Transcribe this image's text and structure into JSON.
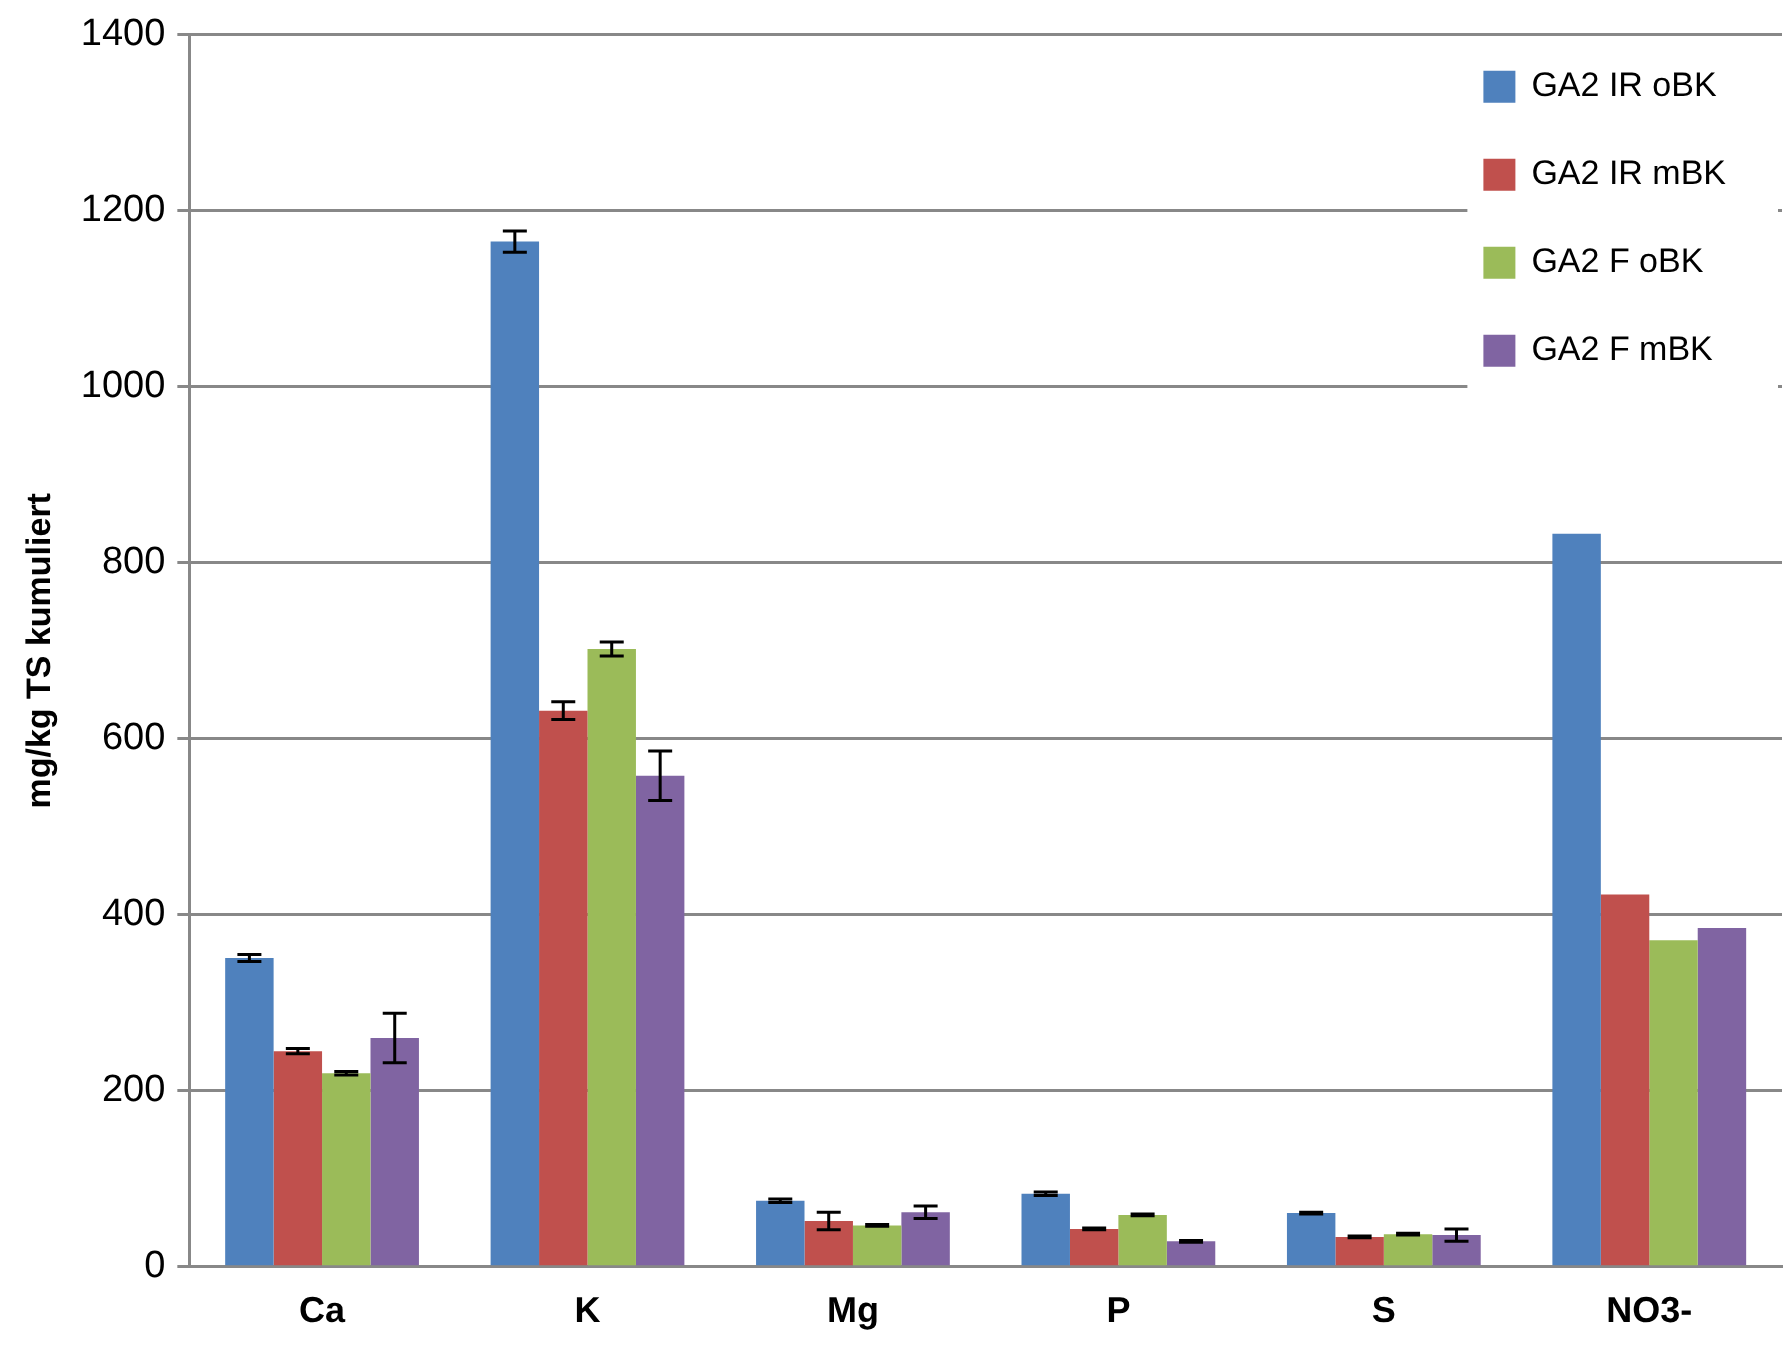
{
  "chart_data": {
    "type": "bar",
    "ylabel": "mg/kg TS kumuliert",
    "categories": [
      "Ca",
      "K",
      "Mg",
      "P",
      "S",
      "NO3-"
    ],
    "series": [
      {
        "name": "GA2 IR oBK",
        "color": "#4f81bd",
        "values": [
          351,
          1165,
          75,
          83,
          61,
          833
        ],
        "errors": [
          4,
          12,
          2,
          2,
          1,
          null
        ]
      },
      {
        "name": "GA2 IR mBK",
        "color": "#c0504d",
        "values": [
          245,
          632,
          52,
          43,
          34,
          423
        ],
        "errors": [
          3,
          10,
          10,
          1,
          1,
          null
        ]
      },
      {
        "name": "GA2 F oBK",
        "color": "#9bbb59",
        "values": [
          220,
          702,
          47,
          59,
          37,
          371
        ],
        "errors": [
          2,
          8,
          1,
          1,
          1,
          null
        ]
      },
      {
        "name": "GA2 F mBK",
        "color": "#8064a2",
        "values": [
          260,
          558,
          62,
          29,
          36,
          385
        ],
        "errors": [
          28,
          28,
          7,
          1,
          7,
          null
        ]
      }
    ],
    "ylim": [
      0,
      1400
    ],
    "yticks": [
      0,
      200,
      400,
      600,
      800,
      1000,
      1200,
      1400
    ],
    "grid": "y",
    "legend": "top right"
  }
}
